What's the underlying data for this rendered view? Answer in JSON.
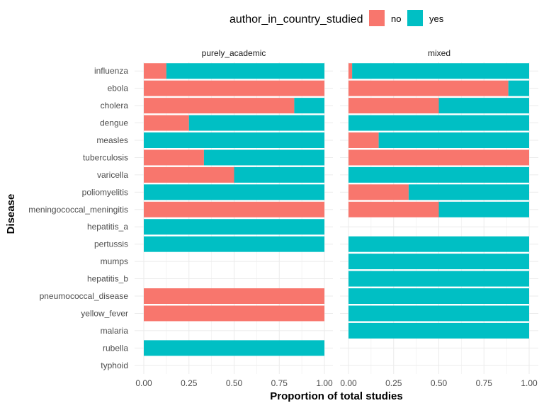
{
  "chart_data": {
    "type": "bar",
    "orientation": "horizontal",
    "stacked": true,
    "xlabel": "Proportion of total studies",
    "ylabel": "Disease",
    "xlim": [
      0,
      1
    ],
    "xticks": [
      "0.00",
      "0.25",
      "0.50",
      "0.75",
      "1.00"
    ],
    "grid": true,
    "legend": {
      "title": "author_in_country_studied",
      "position": "top",
      "entries": [
        {
          "name": "no",
          "color": "#F8766D"
        },
        {
          "name": "yes",
          "color": "#00BFC4"
        }
      ]
    },
    "categories": [
      "influenza",
      "ebola",
      "cholera",
      "dengue",
      "measles",
      "tuberculosis",
      "varicella",
      "poliomyelitis",
      "meningococcal_meningitis",
      "hepatitis_a",
      "pertussis",
      "mumps",
      "hepatitis_b",
      "pneumococcal_disease",
      "yellow_fever",
      "malaria",
      "rubella",
      "typhoid"
    ],
    "facets": [
      {
        "title": "purely_academic",
        "no": [
          0.125,
          1,
          0.833,
          0.25,
          0,
          0.333,
          0.5,
          0,
          1,
          0,
          0,
          null,
          null,
          1,
          1,
          null,
          0,
          null
        ],
        "yes": [
          0.875,
          0,
          0.167,
          0.75,
          1,
          0.667,
          0.5,
          1,
          0,
          1,
          1,
          null,
          null,
          0,
          0,
          null,
          1,
          null
        ]
      },
      {
        "title": "mixed",
        "no": [
          0.02,
          0.885,
          0.5,
          0,
          0.167,
          1,
          0,
          0.333,
          0.5,
          null,
          0,
          0,
          0,
          0,
          0,
          0,
          null,
          null
        ],
        "yes": [
          0.98,
          0.115,
          0.5,
          1,
          0.833,
          0,
          1,
          0.667,
          0.5,
          null,
          1,
          1,
          1,
          1,
          1,
          1,
          null,
          null
        ]
      }
    ]
  }
}
